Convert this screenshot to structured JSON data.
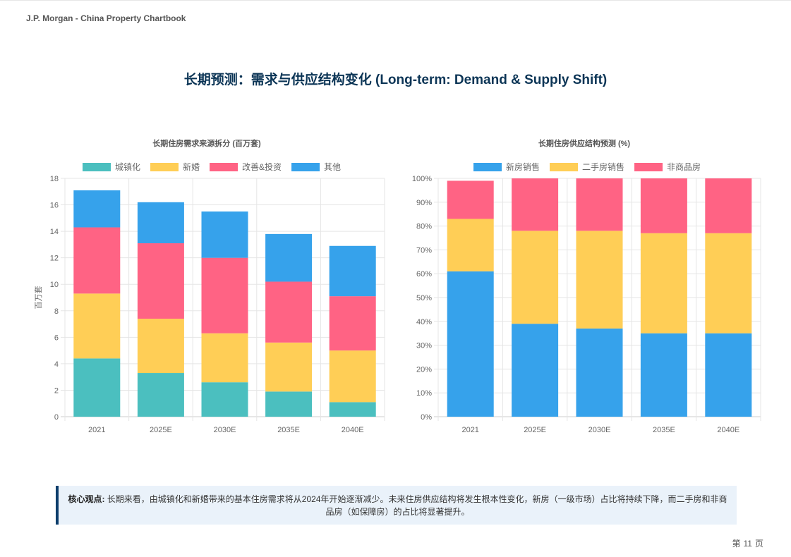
{
  "header": {
    "brand": "J.P. Morgan - China Property Chartbook"
  },
  "page_title": "长期预测：需求与供应结构变化 (Long-term: Demand & Supply Shift)",
  "colors": {
    "teal": "#4bbfbf",
    "yellow": "#ffce56",
    "pink": "#ff6384",
    "blue": "#36a2eb",
    "title_navy": "#0c3556",
    "callout_border": "#0c3d6b",
    "callout_bg": "#eaf2fa"
  },
  "chart_data": [
    {
      "type": "bar",
      "stacked": true,
      "title": "长期住房需求来源拆分 (百万套)",
      "xlabel": "",
      "ylabel": "百万套",
      "categories": [
        "2021",
        "2025E",
        "2030E",
        "2035E",
        "2040E"
      ],
      "ylim": [
        0,
        18
      ],
      "yticks": [
        0,
        2,
        4,
        6,
        8,
        10,
        12,
        14,
        16,
        18
      ],
      "grid": true,
      "legend": "top",
      "series": [
        {
          "name": "城镇化",
          "color": "#4bbfbf",
          "values": [
            4.4,
            3.3,
            2.6,
            1.9,
            1.1
          ]
        },
        {
          "name": "新婚",
          "color": "#ffce56",
          "values": [
            4.9,
            4.1,
            3.7,
            3.7,
            3.9
          ]
        },
        {
          "name": "改善&投资",
          "color": "#ff6384",
          "values": [
            5.0,
            5.7,
            5.7,
            4.6,
            4.1
          ]
        },
        {
          "name": "其他",
          "color": "#36a2eb",
          "values": [
            2.8,
            3.1,
            3.5,
            3.6,
            3.8
          ]
        }
      ]
    },
    {
      "type": "bar",
      "stacked": true,
      "title": "长期住房供应结构预测 (%)",
      "xlabel": "",
      "ylabel": "",
      "categories": [
        "2021",
        "2025E",
        "2030E",
        "2035E",
        "2040E"
      ],
      "ylim": [
        0,
        100
      ],
      "yticks": [
        0,
        10,
        20,
        30,
        40,
        50,
        60,
        70,
        80,
        90,
        100
      ],
      "tick_suffix": "%",
      "grid": true,
      "legend": "top",
      "series": [
        {
          "name": "新房销售",
          "color": "#36a2eb",
          "values": [
            61,
            39,
            37,
            35,
            35
          ]
        },
        {
          "name": "二手房销售",
          "color": "#ffce56",
          "values": [
            22,
            39,
            41,
            42,
            42
          ]
        },
        {
          "name": "非商品房",
          "color": "#ff6384",
          "values": [
            16,
            22,
            22,
            23,
            23
          ]
        }
      ]
    }
  ],
  "callout": {
    "label": "核心观点:",
    "text": " 长期来看，由城镇化和新婚带来的基本住房需求将从2024年开始逐渐减少。未来住房供应结构将发生根本性变化，新房（一级市场）占比将持续下降，而二手房和非商品房（如保障房）的占比将显著提升。"
  },
  "footer": {
    "prefix": "第",
    "page": "11",
    "suffix": "页"
  }
}
